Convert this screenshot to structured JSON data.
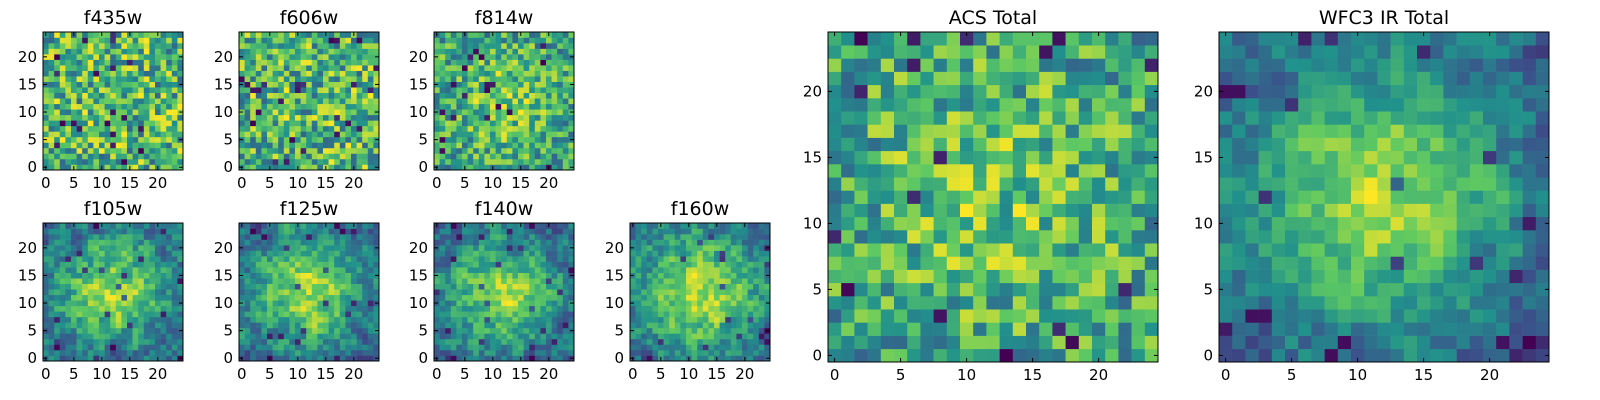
{
  "chart_data": [
    {
      "type": "heatmap",
      "title": "f435w",
      "grid_size": 25,
      "xlim": [
        0,
        24
      ],
      "ylim": [
        0,
        24
      ],
      "xticks": [
        0,
        5,
        10,
        15,
        20
      ],
      "yticks": [
        0,
        5,
        10,
        15,
        20
      ],
      "pattern": "uniform noise",
      "seed": 11
    },
    {
      "type": "heatmap",
      "title": "f606w",
      "grid_size": 25,
      "xlim": [
        0,
        24
      ],
      "ylim": [
        0,
        24
      ],
      "xticks": [
        0,
        5,
        10,
        15,
        20
      ],
      "yticks": [
        0,
        5,
        10,
        15,
        20
      ],
      "pattern": "uniform noise",
      "seed": 23
    },
    {
      "type": "heatmap",
      "title": "f814w",
      "grid_size": 25,
      "xlim": [
        0,
        24
      ],
      "ylim": [
        0,
        24
      ],
      "xticks": [
        0,
        5,
        10,
        15,
        20
      ],
      "yticks": [
        0,
        5,
        10,
        15,
        20
      ],
      "pattern": "noise with faint central concentration",
      "seed": 37
    },
    {
      "type": "heatmap",
      "title": "f105w",
      "grid_size": 25,
      "xlim": [
        0,
        24
      ],
      "ylim": [
        0,
        24
      ],
      "xticks": [
        0,
        5,
        10,
        15,
        20
      ],
      "yticks": [
        0,
        5,
        10,
        15,
        20
      ],
      "pattern": "central concentration",
      "seed": 41
    },
    {
      "type": "heatmap",
      "title": "f125w",
      "grid_size": 25,
      "xlim": [
        0,
        24
      ],
      "ylim": [
        0,
        24
      ],
      "xticks": [
        0,
        5,
        10,
        15,
        20
      ],
      "yticks": [
        0,
        5,
        10,
        15,
        20
      ],
      "pattern": "central concentration",
      "seed": 53
    },
    {
      "type": "heatmap",
      "title": "f140w",
      "grid_size": 25,
      "xlim": [
        0,
        24
      ],
      "ylim": [
        0,
        24
      ],
      "xticks": [
        0,
        5,
        10,
        15,
        20
      ],
      "yticks": [
        0,
        5,
        10,
        15,
        20
      ],
      "pattern": "central concentration",
      "seed": 67
    },
    {
      "type": "heatmap",
      "title": "f160w",
      "grid_size": 25,
      "xlim": [
        0,
        24
      ],
      "ylim": [
        0,
        24
      ],
      "xticks": [
        0,
        5,
        10,
        15,
        20
      ],
      "yticks": [
        0,
        5,
        10,
        15,
        20
      ],
      "pattern": "central concentration",
      "seed": 79
    },
    {
      "type": "heatmap",
      "title": "ACS Total",
      "grid_size": 25,
      "xlim": [
        0,
        24
      ],
      "ylim": [
        0,
        24
      ],
      "xticks": [
        0,
        5,
        10,
        15,
        20
      ],
      "yticks": [
        0,
        5,
        10,
        15,
        20
      ],
      "pattern": "noise with faint central concentration",
      "seed": 97
    },
    {
      "type": "heatmap",
      "title": "WFC3 IR Total",
      "grid_size": 25,
      "xlim": [
        0,
        24
      ],
      "ylim": [
        0,
        24
      ],
      "xticks": [
        0,
        5,
        10,
        15,
        20
      ],
      "yticks": [
        0,
        5,
        10,
        15,
        20
      ],
      "pattern": "strong central concentration",
      "seed": 113
    }
  ],
  "colormap": [
    "#440154",
    "#3b528b",
    "#21918c",
    "#5ec962",
    "#fde725"
  ]
}
